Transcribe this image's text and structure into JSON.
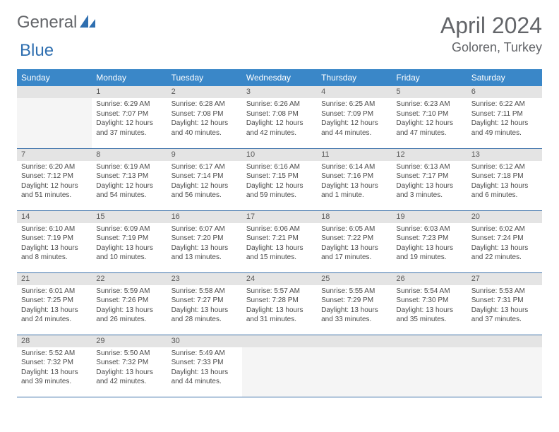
{
  "brand": {
    "text1": "General",
    "text2": "Blue",
    "color1": "#636569",
    "color2": "#2f6fb0"
  },
  "title": "April 2024",
  "location": "Goloren, Turkey",
  "daynames": [
    "Sunday",
    "Monday",
    "Tuesday",
    "Wednesday",
    "Thursday",
    "Friday",
    "Saturday"
  ],
  "header_bg": "#3a87c8",
  "header_fg": "#ffffff",
  "rule_color": "#3a6fa8",
  "daynum_bg": "#e4e4e4",
  "weeks": [
    [
      {
        "n": "",
        "sr": "",
        "ss": "",
        "dl": ""
      },
      {
        "n": "1",
        "sr": "Sunrise: 6:29 AM",
        "ss": "Sunset: 7:07 PM",
        "dl": "Daylight: 12 hours and 37 minutes."
      },
      {
        "n": "2",
        "sr": "Sunrise: 6:28 AM",
        "ss": "Sunset: 7:08 PM",
        "dl": "Daylight: 12 hours and 40 minutes."
      },
      {
        "n": "3",
        "sr": "Sunrise: 6:26 AM",
        "ss": "Sunset: 7:08 PM",
        "dl": "Daylight: 12 hours and 42 minutes."
      },
      {
        "n": "4",
        "sr": "Sunrise: 6:25 AM",
        "ss": "Sunset: 7:09 PM",
        "dl": "Daylight: 12 hours and 44 minutes."
      },
      {
        "n": "5",
        "sr": "Sunrise: 6:23 AM",
        "ss": "Sunset: 7:10 PM",
        "dl": "Daylight: 12 hours and 47 minutes."
      },
      {
        "n": "6",
        "sr": "Sunrise: 6:22 AM",
        "ss": "Sunset: 7:11 PM",
        "dl": "Daylight: 12 hours and 49 minutes."
      }
    ],
    [
      {
        "n": "7",
        "sr": "Sunrise: 6:20 AM",
        "ss": "Sunset: 7:12 PM",
        "dl": "Daylight: 12 hours and 51 minutes."
      },
      {
        "n": "8",
        "sr": "Sunrise: 6:19 AM",
        "ss": "Sunset: 7:13 PM",
        "dl": "Daylight: 12 hours and 54 minutes."
      },
      {
        "n": "9",
        "sr": "Sunrise: 6:17 AM",
        "ss": "Sunset: 7:14 PM",
        "dl": "Daylight: 12 hours and 56 minutes."
      },
      {
        "n": "10",
        "sr": "Sunrise: 6:16 AM",
        "ss": "Sunset: 7:15 PM",
        "dl": "Daylight: 12 hours and 59 minutes."
      },
      {
        "n": "11",
        "sr": "Sunrise: 6:14 AM",
        "ss": "Sunset: 7:16 PM",
        "dl": "Daylight: 13 hours and 1 minute."
      },
      {
        "n": "12",
        "sr": "Sunrise: 6:13 AM",
        "ss": "Sunset: 7:17 PM",
        "dl": "Daylight: 13 hours and 3 minutes."
      },
      {
        "n": "13",
        "sr": "Sunrise: 6:12 AM",
        "ss": "Sunset: 7:18 PM",
        "dl": "Daylight: 13 hours and 6 minutes."
      }
    ],
    [
      {
        "n": "14",
        "sr": "Sunrise: 6:10 AM",
        "ss": "Sunset: 7:19 PM",
        "dl": "Daylight: 13 hours and 8 minutes."
      },
      {
        "n": "15",
        "sr": "Sunrise: 6:09 AM",
        "ss": "Sunset: 7:19 PM",
        "dl": "Daylight: 13 hours and 10 minutes."
      },
      {
        "n": "16",
        "sr": "Sunrise: 6:07 AM",
        "ss": "Sunset: 7:20 PM",
        "dl": "Daylight: 13 hours and 13 minutes."
      },
      {
        "n": "17",
        "sr": "Sunrise: 6:06 AM",
        "ss": "Sunset: 7:21 PM",
        "dl": "Daylight: 13 hours and 15 minutes."
      },
      {
        "n": "18",
        "sr": "Sunrise: 6:05 AM",
        "ss": "Sunset: 7:22 PM",
        "dl": "Daylight: 13 hours and 17 minutes."
      },
      {
        "n": "19",
        "sr": "Sunrise: 6:03 AM",
        "ss": "Sunset: 7:23 PM",
        "dl": "Daylight: 13 hours and 19 minutes."
      },
      {
        "n": "20",
        "sr": "Sunrise: 6:02 AM",
        "ss": "Sunset: 7:24 PM",
        "dl": "Daylight: 13 hours and 22 minutes."
      }
    ],
    [
      {
        "n": "21",
        "sr": "Sunrise: 6:01 AM",
        "ss": "Sunset: 7:25 PM",
        "dl": "Daylight: 13 hours and 24 minutes."
      },
      {
        "n": "22",
        "sr": "Sunrise: 5:59 AM",
        "ss": "Sunset: 7:26 PM",
        "dl": "Daylight: 13 hours and 26 minutes."
      },
      {
        "n": "23",
        "sr": "Sunrise: 5:58 AM",
        "ss": "Sunset: 7:27 PM",
        "dl": "Daylight: 13 hours and 28 minutes."
      },
      {
        "n": "24",
        "sr": "Sunrise: 5:57 AM",
        "ss": "Sunset: 7:28 PM",
        "dl": "Daylight: 13 hours and 31 minutes."
      },
      {
        "n": "25",
        "sr": "Sunrise: 5:55 AM",
        "ss": "Sunset: 7:29 PM",
        "dl": "Daylight: 13 hours and 33 minutes."
      },
      {
        "n": "26",
        "sr": "Sunrise: 5:54 AM",
        "ss": "Sunset: 7:30 PM",
        "dl": "Daylight: 13 hours and 35 minutes."
      },
      {
        "n": "27",
        "sr": "Sunrise: 5:53 AM",
        "ss": "Sunset: 7:31 PM",
        "dl": "Daylight: 13 hours and 37 minutes."
      }
    ],
    [
      {
        "n": "28",
        "sr": "Sunrise: 5:52 AM",
        "ss": "Sunset: 7:32 PM",
        "dl": "Daylight: 13 hours and 39 minutes."
      },
      {
        "n": "29",
        "sr": "Sunrise: 5:50 AM",
        "ss": "Sunset: 7:32 PM",
        "dl": "Daylight: 13 hours and 42 minutes."
      },
      {
        "n": "30",
        "sr": "Sunrise: 5:49 AM",
        "ss": "Sunset: 7:33 PM",
        "dl": "Daylight: 13 hours and 44 minutes."
      },
      {
        "n": "",
        "sr": "",
        "ss": "",
        "dl": ""
      },
      {
        "n": "",
        "sr": "",
        "ss": "",
        "dl": ""
      },
      {
        "n": "",
        "sr": "",
        "ss": "",
        "dl": ""
      },
      {
        "n": "",
        "sr": "",
        "ss": "",
        "dl": ""
      }
    ]
  ]
}
